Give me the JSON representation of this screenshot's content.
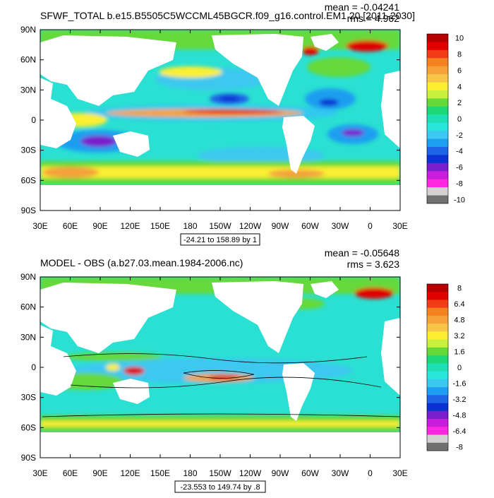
{
  "chart_data": [
    {
      "type": "heatmap",
      "title": "SFWF_TOTAL b.e15.B5505C5WCCML45BGCR.f09_g16.control.EM1 20 [2011-2030]",
      "stats": {
        "mean": "mean = -0.04241",
        "rms": "rms = 4.962"
      },
      "range_note": "-24.21 to 158.89 by 1",
      "x_ticks": [
        "30E",
        "60E",
        "90E",
        "120E",
        "150E",
        "180",
        "150W",
        "120W",
        "90W",
        "60W",
        "30W",
        "0",
        "30E"
      ],
      "y_ticks": [
        "90N",
        "60N",
        "30N",
        "0",
        "30S",
        "60S",
        "90S"
      ],
      "xlim": [
        30,
        390
      ],
      "ylim": [
        -90,
        90
      ],
      "colorbar": {
        "labels": [
          "10",
          "8",
          "6",
          "4",
          "2",
          "0",
          "-2",
          "-4",
          "-6",
          "-8",
          "-10"
        ],
        "colors": [
          "#b40000",
          "#e00000",
          "#f23c18",
          "#f58220",
          "#f5a23a",
          "#f7c648",
          "#fbef30",
          "#c8f03c",
          "#66d93a",
          "#1ed878",
          "#1ee0b4",
          "#28e6dc",
          "#3cc8f0",
          "#1e9ef0",
          "#1e64e6",
          "#0a32d2",
          "#7a1ecc",
          "#c81edc",
          "#ff28e0",
          "#d2d2d2",
          "#707070"
        ]
      }
    },
    {
      "type": "heatmap",
      "title": "MODEL - OBS (a.b27.03.mean.1984-2006.nc)",
      "stats": {
        "mean": "mean = -0.05648",
        "rms": "rms = 3.623"
      },
      "range_note": "-23.553 to 149.74 by .8",
      "x_ticks": [
        "30E",
        "60E",
        "90E",
        "120E",
        "150E",
        "180",
        "150W",
        "120W",
        "90W",
        "60W",
        "30W",
        "0",
        "30E"
      ],
      "y_ticks": [
        "90N",
        "60N",
        "30N",
        "0",
        "30S",
        "60S",
        "90S"
      ],
      "xlim": [
        30,
        390
      ],
      "ylim": [
        -90,
        90
      ],
      "colorbar": {
        "labels": [
          "8",
          "6.4",
          "4.8",
          "3.2",
          "1.6",
          "0",
          "-1.6",
          "-3.2",
          "-4.8",
          "-6.4",
          "-8"
        ],
        "colors": [
          "#b40000",
          "#e00000",
          "#f23c18",
          "#f58220",
          "#f5a23a",
          "#f7c648",
          "#fbef30",
          "#c8f03c",
          "#66d93a",
          "#1ed878",
          "#1ee0b4",
          "#28e6dc",
          "#3cc8f0",
          "#1e9ef0",
          "#1e64e6",
          "#0a32d2",
          "#7a1ecc",
          "#c81edc",
          "#ff28e0",
          "#d2d2d2",
          "#707070"
        ]
      }
    }
  ]
}
